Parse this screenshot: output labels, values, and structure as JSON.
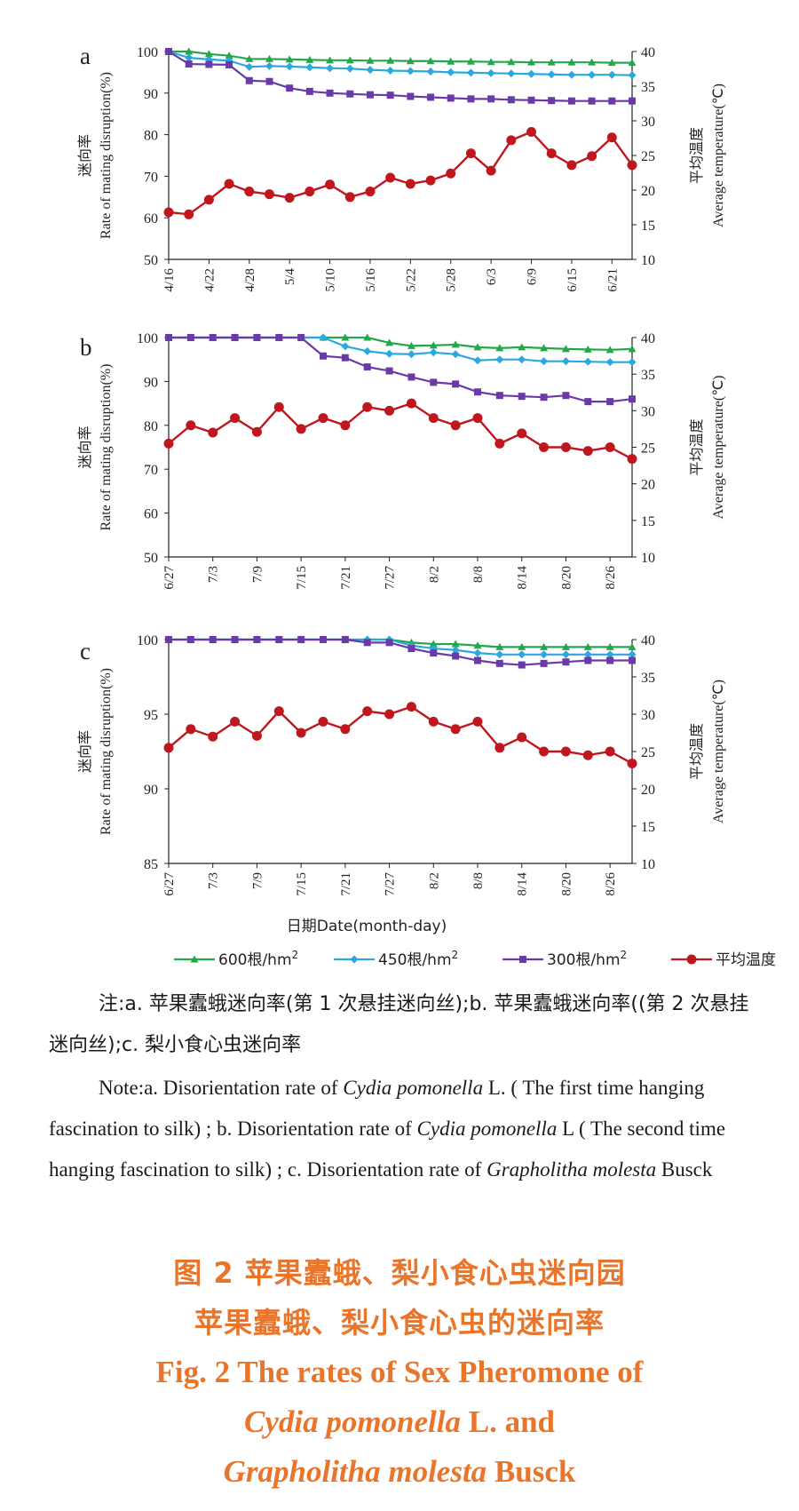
{
  "chart_data": [
    {
      "type": "line",
      "panel_label": "a",
      "x": [
        "4/16",
        "4/19",
        "4/22",
        "4/25",
        "4/28",
        "5/1",
        "5/4",
        "5/7",
        "5/10",
        "5/13",
        "5/16",
        "5/19",
        "5/22",
        "5/25",
        "5/28",
        "5/31",
        "6/3",
        "6/6",
        "6/9",
        "6/12",
        "6/15",
        "6/18",
        "6/21",
        "6/24"
      ],
      "x_tick_labels": [
        "4/16",
        "4/22",
        "4/28",
        "5/4",
        "5/10",
        "5/16",
        "5/22",
        "5/28",
        "6/3",
        "6/9",
        "6/15",
        "6/21"
      ],
      "ylabel": "Rate of mating disruption(%)",
      "ylabel_cn": "迷向率",
      "y2label": "Average temperature(℃)",
      "y2label_cn": "平均温度",
      "ylim": [
        50,
        100
      ],
      "yticks": [
        50,
        60,
        70,
        80,
        90,
        100
      ],
      "y2lim": [
        10,
        40
      ],
      "y2ticks": [
        10,
        15,
        20,
        25,
        30,
        35,
        40
      ],
      "series": [
        {
          "name": "600根/hm²",
          "color": "#22a84a",
          "marker": "triangle",
          "axis": "left",
          "values": [
            100,
            100,
            99.4,
            99,
            98.2,
            98.2,
            98.1,
            98,
            97.9,
            97.9,
            97.8,
            97.8,
            97.7,
            97.7,
            97.6,
            97.6,
            97.5,
            97.5,
            97.4,
            97.4,
            97.4,
            97.4,
            97.3,
            97.3
          ]
        },
        {
          "name": "450根/hm²",
          "color": "#2aa8df",
          "marker": "diamond",
          "axis": "left",
          "values": [
            100,
            98.5,
            98.1,
            97.8,
            96.3,
            96.5,
            96.4,
            96.2,
            96,
            95.9,
            95.6,
            95.4,
            95.3,
            95.2,
            95,
            94.9,
            94.8,
            94.7,
            94.6,
            94.5,
            94.4,
            94.4,
            94.4,
            94.3
          ]
        },
        {
          "name": "300根/hm²",
          "color": "#6a3aa8",
          "marker": "square",
          "axis": "left",
          "values": [
            100,
            97,
            96.9,
            96.8,
            93,
            92.8,
            91.2,
            90.4,
            90,
            89.8,
            89.6,
            89.5,
            89.2,
            89,
            88.8,
            88.6,
            88.6,
            88.4,
            88.3,
            88.2,
            88.1,
            88.1,
            88.1,
            88.1
          ]
        },
        {
          "name": "平均温度",
          "color": "#c0171f",
          "marker": "circle",
          "axis": "right",
          "values": [
            16.8,
            16.5,
            18.6,
            20.9,
            19.8,
            19.4,
            18.9,
            19.8,
            20.8,
            19,
            19.8,
            21.8,
            20.9,
            21.4,
            22.4,
            25.3,
            22.8,
            27.2,
            28.4,
            25.3,
            23.6,
            24.9,
            27.6,
            23.6
          ]
        }
      ]
    },
    {
      "type": "line",
      "panel_label": "b",
      "x": [
        "6/27",
        "6/30",
        "7/3",
        "7/6",
        "7/9",
        "7/12",
        "7/15",
        "7/18",
        "7/21",
        "7/24",
        "7/27",
        "7/30",
        "8/2",
        "8/5",
        "8/8",
        "8/11",
        "8/14",
        "8/17",
        "8/20",
        "8/23",
        "8/26",
        "8/29"
      ],
      "x_tick_labels": [
        "6/27",
        "7/3",
        "7/9",
        "7/15",
        "7/21",
        "7/27",
        "8/2",
        "8/8",
        "8/14",
        "8/20",
        "8/26"
      ],
      "ylabel": "Rate of mating disruption(%)",
      "ylabel_cn": "迷向率",
      "y2label": "Average temperature(℃)",
      "y2label_cn": "平均温度",
      "ylim": [
        50,
        100
      ],
      "yticks": [
        50,
        60,
        70,
        80,
        90,
        100
      ],
      "y2lim": [
        10,
        40
      ],
      "y2ticks": [
        10,
        15,
        20,
        25,
        30,
        35,
        40
      ],
      "series": [
        {
          "name": "600根/hm²",
          "color": "#22a84a",
          "marker": "triangle",
          "axis": "left",
          "values": [
            100,
            100,
            100,
            100,
            100,
            100,
            100,
            100,
            100,
            100,
            98.8,
            98.1,
            98.2,
            98.4,
            97.8,
            97.6,
            97.8,
            97.6,
            97.4,
            97.3,
            97.2,
            97.4
          ]
        },
        {
          "name": "450根/hm²",
          "color": "#2aa8df",
          "marker": "diamond",
          "axis": "left",
          "values": [
            100,
            100,
            100,
            100,
            100,
            100,
            100,
            100,
            98,
            96.9,
            96.3,
            96.2,
            96.6,
            96.2,
            94.8,
            95,
            95,
            94.6,
            94.6,
            94.5,
            94.4,
            94.4
          ]
        },
        {
          "name": "300根/hm²",
          "color": "#6a3aa8",
          "marker": "square",
          "axis": "left",
          "values": [
            100,
            100,
            100,
            100,
            100,
            100,
            100,
            95.8,
            95.4,
            93.3,
            92.4,
            91,
            89.8,
            89.4,
            87.6,
            86.8,
            86.6,
            86.4,
            86.8,
            85.4,
            85.4,
            86
          ]
        },
        {
          "name": "平均温度",
          "color": "#c0171f",
          "marker": "circle",
          "axis": "right",
          "values": [
            25.5,
            28,
            27,
            29,
            27.1,
            30.5,
            27.5,
            29,
            28,
            30.5,
            30,
            31,
            29,
            28,
            29,
            25.5,
            26.9,
            25,
            25,
            24.5,
            25,
            23.4
          ]
        }
      ]
    },
    {
      "type": "line",
      "panel_label": "c",
      "x": [
        "6/27",
        "6/30",
        "7/3",
        "7/6",
        "7/9",
        "7/12",
        "7/15",
        "7/18",
        "7/21",
        "7/24",
        "7/27",
        "7/30",
        "8/2",
        "8/5",
        "8/8",
        "8/11",
        "8/14",
        "8/17",
        "8/20",
        "8/23",
        "8/26",
        "8/29"
      ],
      "x_tick_labels": [
        "6/27",
        "7/3",
        "7/9",
        "7/15",
        "7/21",
        "7/27",
        "8/2",
        "8/8",
        "8/14",
        "8/20",
        "8/26"
      ],
      "xlabel": "日期Date(month-day)",
      "ylabel": "Rate of mating disruption(%)",
      "ylabel_cn": "迷向率",
      "y2label": "Average temperature(℃)",
      "y2label_cn": "平均温度",
      "ylim": [
        85,
        100
      ],
      "yticks": [
        85,
        90,
        95,
        100
      ],
      "y2lim": [
        10,
        40
      ],
      "y2ticks": [
        10,
        15,
        20,
        25,
        30,
        35,
        40
      ],
      "series": [
        {
          "name": "600根/hm²",
          "color": "#22a84a",
          "marker": "triangle",
          "axis": "left",
          "values": [
            100,
            100,
            100,
            100,
            100,
            100,
            100,
            100,
            100,
            100,
            100,
            99.8,
            99.7,
            99.7,
            99.6,
            99.5,
            99.5,
            99.5,
            99.5,
            99.5,
            99.5,
            99.5
          ]
        },
        {
          "name": "450根/hm²",
          "color": "#2aa8df",
          "marker": "diamond",
          "axis": "left",
          "values": [
            100,
            100,
            100,
            100,
            100,
            100,
            100,
            100,
            100,
            100,
            100,
            99.6,
            99.4,
            99.3,
            99.1,
            99,
            99,
            99,
            99,
            99,
            99,
            99
          ]
        },
        {
          "name": "300根/hm²",
          "color": "#6a3aa8",
          "marker": "square",
          "axis": "left",
          "values": [
            100,
            100,
            100,
            100,
            100,
            100,
            100,
            100,
            100,
            99.8,
            99.8,
            99.4,
            99.1,
            98.9,
            98.6,
            98.4,
            98.3,
            98.4,
            98.5,
            98.6,
            98.6,
            98.6
          ]
        },
        {
          "name": "平均温度",
          "color": "#c0171f",
          "marker": "circle",
          "axis": "right",
          "values": [
            25.5,
            28,
            27,
            29,
            27.1,
            30.4,
            27.5,
            29,
            28,
            30.4,
            30,
            31,
            29,
            28,
            29,
            25.5,
            26.9,
            25,
            25,
            24.5,
            25,
            23.4
          ]
        }
      ]
    }
  ],
  "legend": [
    {
      "label": "600根/hm",
      "sup": "2",
      "color": "#22a84a",
      "marker": "triangle"
    },
    {
      "label": "450根/hm",
      "sup": "2",
      "color": "#2aa8df",
      "marker": "diamond"
    },
    {
      "label": "300根/hm",
      "sup": "2",
      "color": "#6a3aa8",
      "marker": "square"
    },
    {
      "label": "平均温度",
      "sup": "",
      "color": "#c0171f",
      "marker": "circle"
    }
  ],
  "note": {
    "cn": "注:a. 苹果蠹蛾迷向率(第 1 次悬挂迷向丝);b. 苹果蠹蛾迷向率((第 2 次悬挂迷向丝);c. 梨小食心虫迷向率",
    "en_1": "Note:a. Disorientation rate of ",
    "en_2": "Cydia pomonella",
    "en_3": " L. ( The first time hanging fascination to silk) ; b. Disorientation rate of ",
    "en_4": "Cydia pomonella",
    "en_5": " L ( The second time hanging fascination to silk) ; c. Disorientation rate of ",
    "en_6": "Grapholitha molesta",
    "en_7": " Busck"
  },
  "caption": {
    "cn_1": "图 2   苹果蠹蛾、梨小食心虫迷向园",
    "cn_2": "苹果蠹蛾、梨小食心虫的迷向率",
    "en_1": "Fig. 2    The rates of Sex Pheromone of",
    "en_2_italic": "Cydia pomonella",
    "en_2_rest": " L. and",
    "en_3_italic": "Grapholitha molesta",
    "en_3_rest": " Busck"
  }
}
